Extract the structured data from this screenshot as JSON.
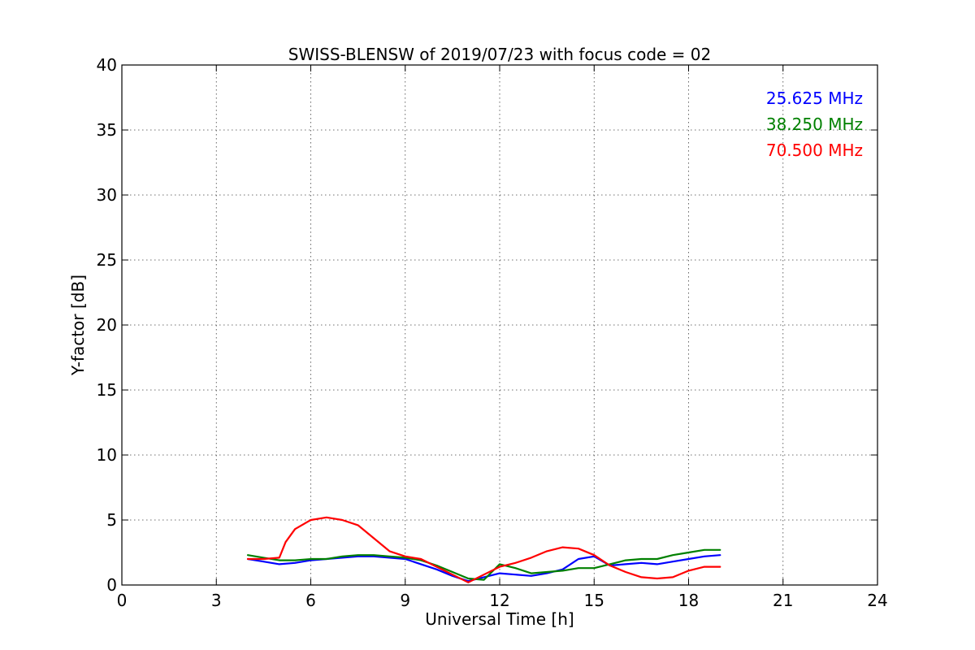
{
  "chart_data": {
    "type": "line",
    "title": "SWISS-BLENSW of 2019/07/23 with focus code = 02",
    "xlabel": "Universal Time [h]",
    "ylabel": "Y-factor [dB]",
    "xlim": [
      0,
      24
    ],
    "ylim": [
      0,
      40
    ],
    "xticks": [
      "0",
      "3",
      "6",
      "9",
      "12",
      "15",
      "18",
      "21",
      "24"
    ],
    "yticks": [
      "0",
      "5",
      "10",
      "15",
      "20",
      "25",
      "30",
      "35",
      "40"
    ],
    "grid": true,
    "legend_position": "top-right",
    "series": [
      {
        "name": "25.625 MHz",
        "color": "#0000ff",
        "x": [
          4.0,
          4.5,
          5.0,
          5.5,
          6.0,
          6.5,
          7.0,
          7.5,
          8.0,
          8.5,
          9.0,
          9.5,
          10.0,
          10.5,
          11.0,
          11.5,
          12.0,
          12.5,
          13.0,
          13.5,
          14.0,
          14.5,
          15.0,
          15.5,
          16.0,
          16.5,
          17.0,
          17.5,
          18.0,
          18.5,
          19.0
        ],
        "y": [
          2.0,
          1.8,
          1.6,
          1.7,
          1.9,
          2.0,
          2.1,
          2.2,
          2.2,
          2.1,
          2.0,
          1.6,
          1.2,
          0.7,
          0.3,
          0.6,
          0.9,
          0.8,
          0.7,
          0.9,
          1.2,
          2.0,
          2.2,
          1.5,
          1.6,
          1.7,
          1.6,
          1.8,
          2.0,
          2.2,
          2.3
        ]
      },
      {
        "name": "38.250 MHz",
        "color": "#008000",
        "x": [
          4.0,
          4.5,
          5.0,
          5.5,
          6.0,
          6.5,
          7.0,
          7.5,
          8.0,
          8.5,
          9.0,
          9.5,
          10.0,
          10.5,
          11.0,
          11.5,
          12.0,
          12.5,
          13.0,
          13.5,
          14.0,
          14.5,
          15.0,
          15.5,
          16.0,
          16.5,
          17.0,
          17.5,
          18.0,
          18.5,
          19.0
        ],
        "y": [
          2.3,
          2.1,
          1.9,
          1.9,
          2.0,
          2.0,
          2.2,
          2.3,
          2.3,
          2.2,
          2.1,
          1.9,
          1.5,
          1.0,
          0.5,
          0.4,
          1.6,
          1.3,
          0.9,
          1.0,
          1.1,
          1.3,
          1.3,
          1.6,
          1.9,
          2.0,
          2.0,
          2.3,
          2.5,
          2.7,
          2.7
        ]
      },
      {
        "name": "70.500 MHz",
        "color": "#ff0000",
        "x": [
          4.0,
          4.5,
          5.0,
          5.2,
          5.5,
          6.0,
          6.5,
          7.0,
          7.5,
          8.0,
          8.5,
          9.0,
          9.5,
          10.0,
          10.5,
          11.0,
          11.5,
          12.0,
          12.5,
          13.0,
          13.5,
          14.0,
          14.5,
          15.0,
          15.5,
          16.0,
          16.5,
          17.0,
          17.5,
          18.0,
          18.5,
          19.0
        ],
        "y": [
          2.0,
          2.0,
          2.1,
          3.3,
          4.3,
          5.0,
          5.2,
          5.0,
          4.6,
          3.6,
          2.6,
          2.2,
          2.0,
          1.4,
          0.8,
          0.2,
          0.8,
          1.4,
          1.7,
          2.1,
          2.6,
          2.9,
          2.8,
          2.3,
          1.5,
          1.0,
          0.6,
          0.5,
          0.6,
          1.1,
          1.4,
          1.4
        ]
      }
    ]
  }
}
